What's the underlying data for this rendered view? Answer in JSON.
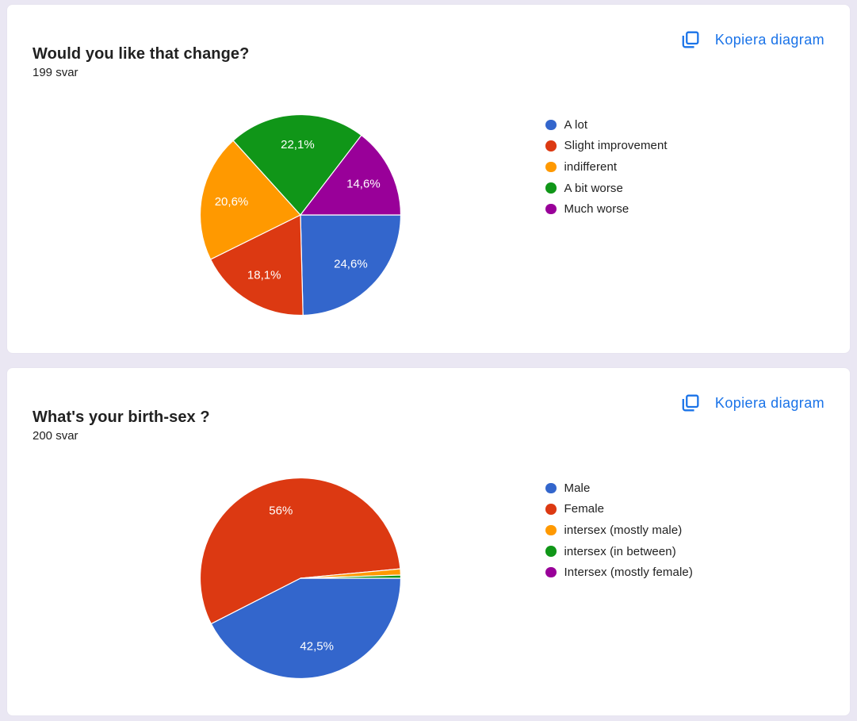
{
  "page": {
    "background_color": "#eae7f3",
    "card_color": "#ffffff",
    "accent_color": "#1a73e8"
  },
  "cards": [
    {
      "title": "Would you like that change?",
      "response_count": "199 svar",
      "copy_button_label": "Kopiera diagram",
      "chart_data": {
        "type": "pie",
        "start_angle_deg": 90,
        "direction": "clockwise",
        "label_color": "#ffffff",
        "legend_position": "right",
        "slices": [
          {
            "legend": "A lot",
            "percent": 24.6,
            "display": "24,6%",
            "color": "#3366cc"
          },
          {
            "legend": "Slight improvement",
            "percent": 18.1,
            "display": "18,1%",
            "color": "#dc3912"
          },
          {
            "legend": "indifferent",
            "percent": 20.6,
            "display": "20,6%",
            "color": "#ff9900"
          },
          {
            "legend": "A bit worse",
            "percent": 22.1,
            "display": "22,1%",
            "color": "#109618"
          },
          {
            "legend": "Much worse",
            "percent": 14.6,
            "display": "14,6%",
            "color": "#990099"
          }
        ]
      }
    },
    {
      "title": "What's your birth-sex ?",
      "response_count": "200 svar",
      "copy_button_label": "Kopiera diagram",
      "chart_data": {
        "type": "pie",
        "start_angle_deg": 90,
        "direction": "clockwise",
        "label_color": "#ffffff",
        "legend_position": "right",
        "slices": [
          {
            "legend": "Male",
            "percent": 42.5,
            "display": "42,5%",
            "color": "#3366cc"
          },
          {
            "legend": "Female",
            "percent": 56.0,
            "display": "56%",
            "color": "#dc3912"
          },
          {
            "legend": "intersex (mostly male)",
            "percent": 1.0,
            "display": null,
            "color": "#ff9900"
          },
          {
            "legend": "intersex (in between)",
            "percent": 0.5,
            "display": null,
            "color": "#109618"
          },
          {
            "legend": "Intersex (mostly female)",
            "percent": 0.0,
            "display": null,
            "color": "#990099"
          }
        ]
      }
    }
  ]
}
